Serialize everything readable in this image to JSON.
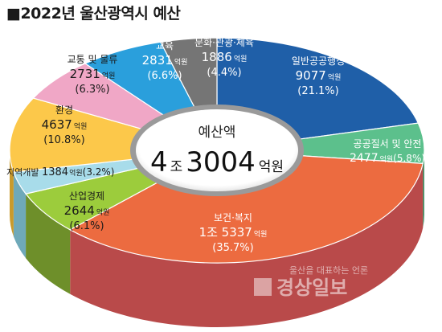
{
  "title": "■2022년 울산광역시 예산",
  "chart_data": {
    "type": "pie",
    "variant": "3d-donut",
    "title": "■2022년 울산광역시 예산",
    "center": {
      "label": "예산액",
      "value_big1": "4",
      "value_unit1": "조",
      "value_big2": "3004",
      "value_unit2": "억원"
    },
    "unit": "억원",
    "slices": [
      {
        "name": "일반공공행정",
        "value": 9077,
        "value_text": "9077",
        "unit_text": "억원",
        "pct_text": "(21.1%)",
        "color": "#1f5fa8",
        "dark": "#14427a"
      },
      {
        "name": "공공질서 및 안전",
        "value": 2477,
        "value_text": "2477",
        "unit_text": "억원",
        "pct_text": "(5.8%)",
        "color": "#5cc08c",
        "dark": "#3c8f63"
      },
      {
        "name": "보건·복지",
        "value": 15337,
        "value_text": "1조 5337",
        "unit_text": "억원",
        "pct_text": "(35.7%)",
        "color": "#ec6b40",
        "dark": "#b94a4a"
      },
      {
        "name": "산업경제",
        "value": 2644,
        "value_text": "2644",
        "unit_text": "억원",
        "pct_text": "(6.1%)",
        "color": "#9ccc3c",
        "dark": "#6e8f2a"
      },
      {
        "name": "지역개발",
        "value": 1384,
        "value_text": "1384",
        "unit_text": "억원",
        "pct_text": "(3.2%)",
        "color": "#a8dcea",
        "dark": "#6fa9b9"
      },
      {
        "name": "환경",
        "value": 4637,
        "value_text": "4637",
        "unit_text": "억원",
        "pct_text": "(10.8%)",
        "color": "#fcc84a",
        "dark": "#c99a2c"
      },
      {
        "name": "교통 및 물류",
        "value": 2731,
        "value_text": "2731",
        "unit_text": "억원",
        "pct_text": "(6.3%)",
        "color": "#f0a7c6",
        "dark": "#c27e9c"
      },
      {
        "name": "교육",
        "value": 2831,
        "value_text": "2831",
        "unit_text": "억원",
        "pct_text": "(6.6%)",
        "color": "#2a9fdc",
        "dark": "#1d74a3"
      },
      {
        "name": "문화·관광·체육",
        "value": 1886,
        "value_text": "1886",
        "unit_text": "억원",
        "pct_text": "(4.4%)",
        "color": "#757575",
        "dark": "#4e4e4e"
      }
    ]
  },
  "watermark": {
    "slogan": "울산을 대표하는 언론",
    "name": "경상일보"
  }
}
